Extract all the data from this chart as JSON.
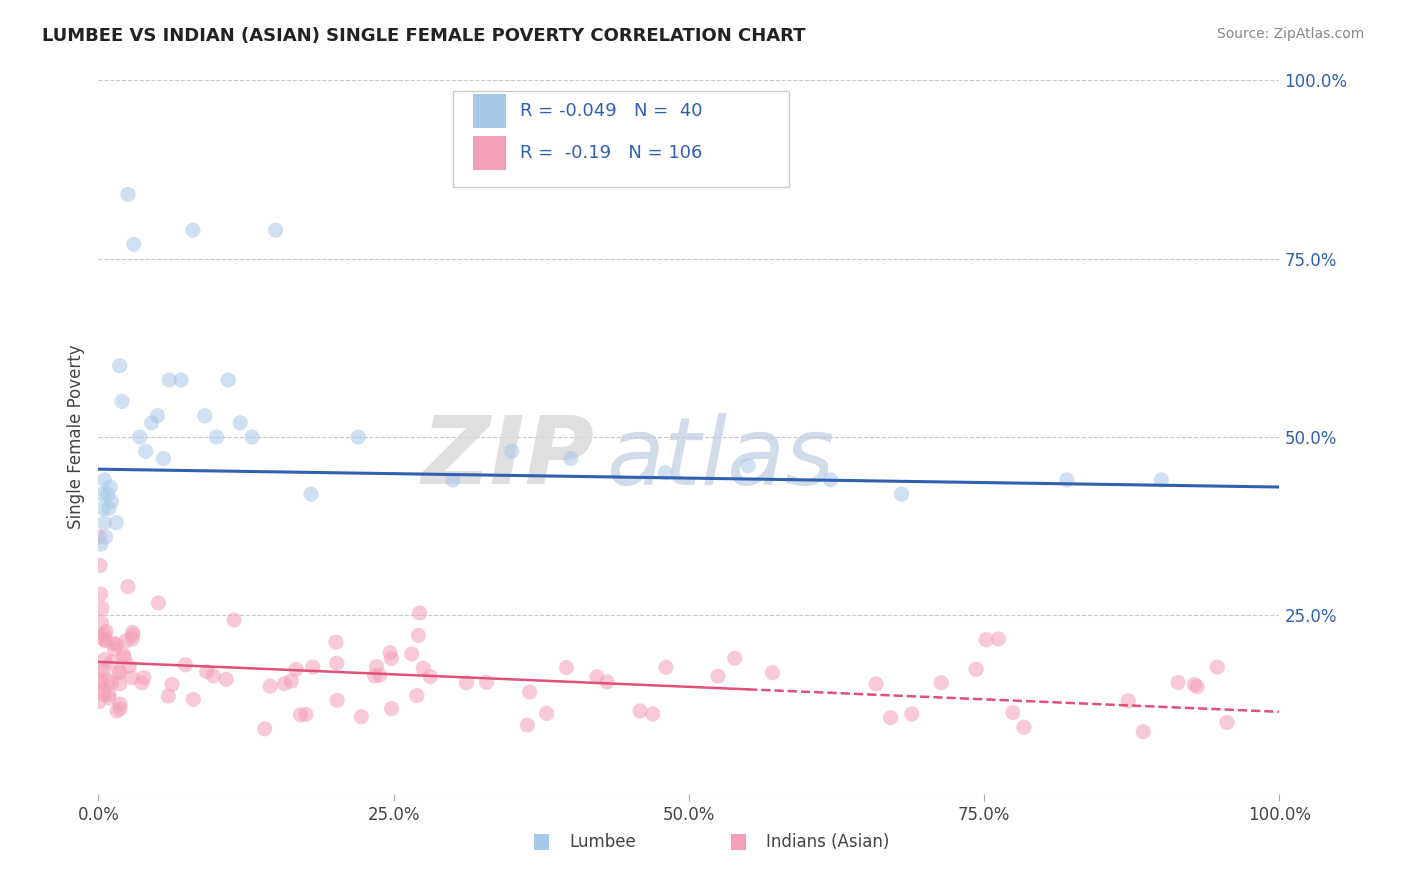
{
  "title": "LUMBEE VS INDIAN (ASIAN) SINGLE FEMALE POVERTY CORRELATION CHART",
  "source": "Source: ZipAtlas.com",
  "ylabel": "Single Female Poverty",
  "lumbee_R": -0.049,
  "lumbee_N": 40,
  "indian_R": -0.19,
  "indian_N": 106,
  "lumbee_color": "#a8c8e8",
  "lumbee_line_color": "#3060b0",
  "indian_color": "#f4a0b8",
  "indian_line_color": "#e05078",
  "legend_lumbee_label": "Lumbee",
  "legend_indian_label": "Indians (Asian)",
  "background_color": "#ffffff",
  "grid_color": "#c8c8c8",
  "xlim": [
    0,
    100
  ],
  "ylim": [
    0,
    100
  ],
  "xticks": [
    0,
    25,
    50,
    75,
    100
  ],
  "yticks": [
    0,
    25,
    50,
    75,
    100
  ],
  "xticklabels": [
    "0.0%",
    "25.0%",
    "50.0%",
    "75.0%",
    "100.0%"
  ],
  "right_yticklabels": [
    "",
    "25.0%",
    "50.0%",
    "75.0%",
    "100.0%"
  ],
  "watermark_zip": "ZIP",
  "watermark_atlas": "atlas",
  "marker_size": 120,
  "marker_alpha": 0.55,
  "lumbee_line_start_y": 45.5,
  "lumbee_line_end_y": 43.0,
  "indian_line_start_y": 18.5,
  "indian_line_end_y": 11.5,
  "indian_solid_end_x": 55
}
